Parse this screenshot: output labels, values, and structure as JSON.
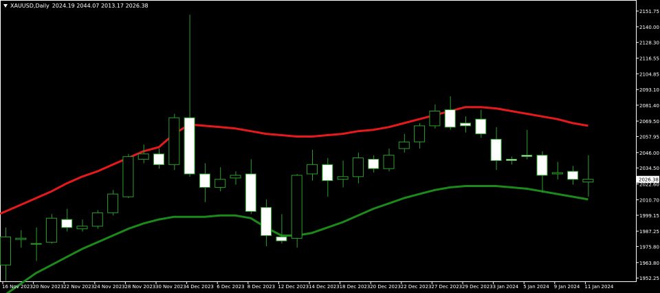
{
  "header": {
    "symbol": "XAUUSD,Daily",
    "ohlc": "2024.19 2044.07 2013.17 2026.38",
    "menu_icon": "triangle-down-icon"
  },
  "current_price_label": "2026.38",
  "colors": {
    "background": "#000000",
    "frame": "#ffffff",
    "bull_candle": "#000000",
    "bear_candle": "#ffffff",
    "wick": "#2ca02c",
    "upper_band": "#e8191c",
    "lower_band": "#1b8a1b",
    "text": "#ffffff",
    "price_tag_bg": "#ffffff",
    "price_tag_text": "#000000"
  },
  "chart_data": {
    "type": "candlestick",
    "title": "XAUUSD,Daily",
    "ylim": [
      1949.8,
      2160.0
    ],
    "y_ticks": [
      "2151.75",
      "2140.00",
      "2128.30",
      "2116.55",
      "2104.85",
      "2093.10",
      "2081.40",
      "2069.50",
      "2057.95",
      "2046.00",
      "2034.50",
      "2022.60",
      "2010.70",
      "1999.15",
      "1987.25",
      "1975.80",
      "1963.80",
      "1952.25"
    ],
    "x_tick_labels": [
      "16 Nov 2023",
      "20 Nov 2023",
      "22 Nov 2023",
      "24 Nov 2023",
      "28 Nov 2023",
      "30 Nov 2023",
      "4 Dec 2023",
      "6 Dec 2023",
      "8 Dec 2023",
      "12 Dec 2023",
      "14 Dec 2023",
      "18 Dec 2023",
      "20 Dec 2023",
      "22 Dec 2023",
      "27 Dec 2023",
      "29 Dec 2023",
      "3 Jan 2024",
      "5 Jan 2024",
      "9 Jan 2024",
      "11 Jan 2024"
    ],
    "candles": [
      {
        "o": 1962,
        "h": 1990,
        "l": 1950,
        "c": 1983
      },
      {
        "o": 1981,
        "h": 1988,
        "l": 1975,
        "c": 1982
      },
      {
        "o": 1978,
        "h": 1990,
        "l": 1965,
        "c": 1978
      },
      {
        "o": 1979,
        "h": 2000,
        "l": 1978,
        "c": 1997
      },
      {
        "o": 1996,
        "h": 2004,
        "l": 1987,
        "c": 1990
      },
      {
        "o": 1989,
        "h": 1996,
        "l": 1987,
        "c": 1991
      },
      {
        "o": 1991,
        "h": 2003,
        "l": 1989,
        "c": 2001
      },
      {
        "o": 2001,
        "h": 2018,
        "l": 1999,
        "c": 2015
      },
      {
        "o": 2013,
        "h": 2045,
        "l": 2012,
        "c": 2043
      },
      {
        "o": 2041,
        "h": 2052,
        "l": 2038,
        "c": 2045
      },
      {
        "o": 2045,
        "h": 2049,
        "l": 2034,
        "c": 2037
      },
      {
        "o": 2037,
        "h": 2075,
        "l": 2033,
        "c": 2072
      },
      {
        "o": 2072,
        "h": 2149,
        "l": 2028,
        "c": 2030
      },
      {
        "o": 2030,
        "h": 2038,
        "l": 2009,
        "c": 2020
      },
      {
        "o": 2020,
        "h": 2035,
        "l": 2017,
        "c": 2026
      },
      {
        "o": 2027,
        "h": 2032,
        "l": 2022,
        "c": 2029
      },
      {
        "o": 2030,
        "h": 2041,
        "l": 2000,
        "c": 2002
      },
      {
        "o": 2005,
        "h": 2011,
        "l": 1976,
        "c": 1984
      },
      {
        "o": 1983,
        "h": 2000,
        "l": 1978,
        "c": 1980
      },
      {
        "o": 1982,
        "h": 2030,
        "l": 1975,
        "c": 2029
      },
      {
        "o": 2030,
        "h": 2048,
        "l": 2025,
        "c": 2037
      },
      {
        "o": 2037,
        "h": 2042,
        "l": 2013,
        "c": 2025
      },
      {
        "o": 2026,
        "h": 2040,
        "l": 2020,
        "c": 2028
      },
      {
        "o": 2028,
        "h": 2046,
        "l": 2023,
        "c": 2042
      },
      {
        "o": 2041,
        "h": 2044,
        "l": 2031,
        "c": 2034
      },
      {
        "o": 2034,
        "h": 2049,
        "l": 2032,
        "c": 2044
      },
      {
        "o": 2049,
        "h": 2060,
        "l": 2046,
        "c": 2054
      },
      {
        "o": 2054,
        "h": 2068,
        "l": 2049,
        "c": 2066
      },
      {
        "o": 2066,
        "h": 2082,
        "l": 2064,
        "c": 2077
      },
      {
        "o": 2078,
        "h": 2088,
        "l": 2063,
        "c": 2065
      },
      {
        "o": 2068,
        "h": 2073,
        "l": 2061,
        "c": 2066
      },
      {
        "o": 2071,
        "h": 2078,
        "l": 2057,
        "c": 2060
      },
      {
        "o": 2056,
        "h": 2065,
        "l": 2033,
        "c": 2040
      },
      {
        "o": 2041,
        "h": 2043,
        "l": 2037,
        "c": 2040
      },
      {
        "o": 2044,
        "h": 2063,
        "l": 2041,
        "c": 2043
      },
      {
        "o": 2044,
        "h": 2047,
        "l": 2016,
        "c": 2029
      },
      {
        "o": 2030,
        "h": 2039,
        "l": 2026,
        "c": 2031
      },
      {
        "o": 2032,
        "h": 2036,
        "l": 2022,
        "c": 2026
      },
      {
        "o": 2024,
        "h": 2044,
        "l": 2013,
        "c": 2026
      }
    ],
    "series": [
      {
        "name": "upper",
        "values": [
          2002,
          2007,
          2012,
          2017,
          2023,
          2028,
          2032,
          2037,
          2042,
          2047,
          2050,
          2060,
          2067,
          2066,
          2065,
          2064,
          2062,
          2060,
          2059,
          2058,
          2058,
          2059,
          2060,
          2062,
          2063,
          2065,
          2068,
          2071,
          2074,
          2077,
          2080,
          2080,
          2079,
          2077,
          2075,
          2073,
          2071,
          2068,
          2066
        ]
      },
      {
        "name": "lower",
        "values": [
          1940,
          1948,
          1956,
          1962,
          1968,
          1974,
          1979,
          1984,
          1989,
          1993,
          1996,
          1998,
          1998,
          1998,
          1999,
          1999,
          1997,
          1990,
          1984,
          1984,
          1986,
          1990,
          1994,
          1999,
          2004,
          2008,
          2012,
          2015,
          2018,
          2020,
          2021,
          2021,
          2021,
          2020,
          2019,
          2017,
          2015,
          2013,
          2011
        ]
      }
    ]
  }
}
